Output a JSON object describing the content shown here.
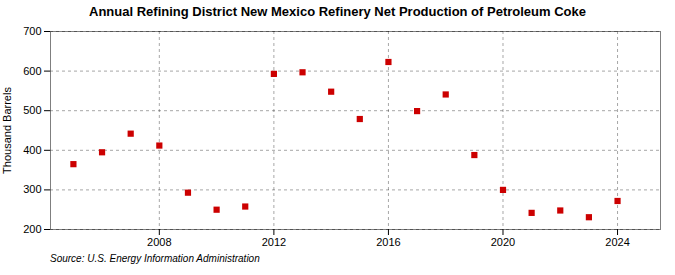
{
  "chart_data": {
    "type": "scatter",
    "title": "Annual Refining District New Mexico Refinery Net Production of Petroleum Coke",
    "ylabel": "Thousand Barrels",
    "source": "Source: U.S. Energy Information Administration",
    "x": [
      2005,
      2006,
      2007,
      2008,
      2009,
      2010,
      2011,
      2012,
      2013,
      2014,
      2015,
      2016,
      2017,
      2018,
      2019,
      2020,
      2021,
      2022,
      2023,
      2024
    ],
    "values": [
      365,
      395,
      442,
      412,
      293,
      250,
      258,
      593,
      597,
      548,
      479,
      623,
      499,
      541,
      388,
      300,
      242,
      248,
      231,
      272
    ],
    "color": "#cc0000",
    "marker": "square",
    "xlim": [
      2004.2,
      2025.5
    ],
    "xticks": [
      2008,
      2012,
      2016,
      2020,
      2024
    ],
    "ylim": [
      200,
      700
    ],
    "yticks": [
      200,
      300,
      400,
      500,
      600,
      700
    ],
    "grid": true
  }
}
